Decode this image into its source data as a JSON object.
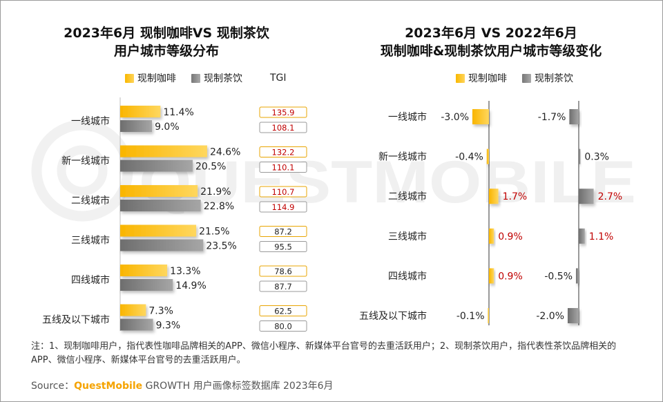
{
  "left_title": [
    "2023年6月 现制咖啡VS 现制茶饮",
    "用户城市等级分布"
  ],
  "right_title": [
    "2023年6月 VS 2022年6月",
    "现制咖啡&现制茶饮用户城市等级变化"
  ],
  "legend": {
    "coffee": "现制咖啡",
    "tea": "现制茶饮",
    "tgi": "TGI"
  },
  "colors": {
    "coffee": "#f9b800",
    "tea": "#8c8c8c",
    "tgi_coffee_border": "#e8a400",
    "tgi_tea_border": "#999999",
    "positive_change": "#c00000",
    "text": "#222222"
  },
  "chart_data": [
    {
      "type": "bar",
      "orientation": "horizontal",
      "categories": [
        "一线城市",
        "新一线城市",
        "二线城市",
        "三线城市",
        "四线城市",
        "五线及以下城市"
      ],
      "series": [
        {
          "name": "现制咖啡",
          "values": [
            11.4,
            24.6,
            21.9,
            21.5,
            13.3,
            7.3
          ],
          "labels": [
            "11.4%",
            "24.6%",
            "21.9%",
            "21.5%",
            "13.3%",
            "7.3%"
          ]
        },
        {
          "name": "现制茶饮",
          "values": [
            9.0,
            20.5,
            22.8,
            23.5,
            14.9,
            9.3
          ],
          "labels": [
            "9.0%",
            "20.5%",
            "22.8%",
            "23.5%",
            "14.9%",
            "9.3%"
          ]
        }
      ],
      "tgi": {
        "name": "TGI",
        "coffee": [
          "135.9",
          "132.2",
          "110.7",
          "87.2",
          "78.6",
          "62.5"
        ],
        "tea": [
          "108.1",
          "110.1",
          "114.9",
          "95.5",
          "87.7",
          "80.0"
        ]
      }
    },
    {
      "type": "bar",
      "orientation": "horizontal",
      "categories": [
        "一线城市",
        "新一线城市",
        "二线城市",
        "三线城市",
        "四线城市",
        "五线及以下城市"
      ],
      "series": [
        {
          "name": "现制咖啡",
          "values": [
            -3.0,
            -0.4,
            1.7,
            0.9,
            0.9,
            -0.1
          ],
          "labels": [
            "-3.0%",
            "-0.4%",
            "1.7%",
            "0.9%",
            "0.9%",
            "-0.1%"
          ]
        },
        {
          "name": "现制茶饮",
          "values": [
            -1.7,
            0.3,
            2.7,
            1.1,
            -0.5,
            -2.0
          ],
          "labels": [
            "-1.7%",
            "0.3%",
            "2.7%",
            "1.1%",
            "-0.5%",
            "-2.0%"
          ]
        }
      ]
    }
  ],
  "note": "注：1、现制咖啡用户，指代表性咖啡品牌相关的APP、微信小程序、新媒体平台官号的去重活跃用户；2、现制茶饮用户，指代表性茶饮品牌相关的APP、微信小程序、新媒体平台官号的去重活跃用户。",
  "source": {
    "label": "Source：",
    "brand": "QuestMobile",
    "text": " GROWTH 用户画像标签数据库 2023年6月"
  },
  "watermark": "QUESTMOBILE"
}
